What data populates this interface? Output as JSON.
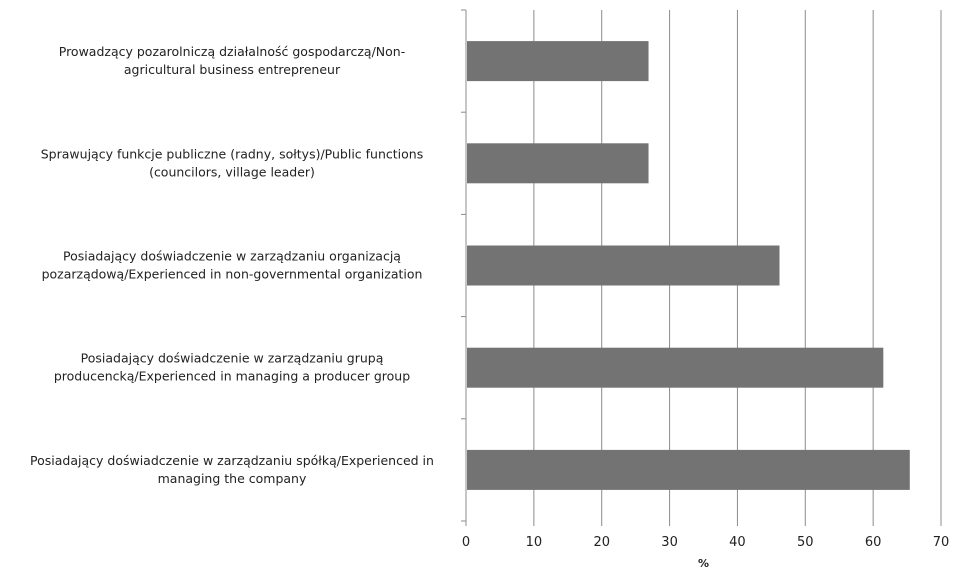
{
  "chart_data": {
    "type": "bar",
    "orientation": "horizontal",
    "categories": [
      [
        "Prowadzący pozarolniczą działalność gospodarczą/Non-",
        "agricultural business entrepreneur"
      ],
      [
        "Sprawujący funkcje publiczne (radny, sołtys)/Public functions",
        "(councilors, village leader)"
      ],
      [
        "Posiadający doświadczenie w zarządzaniu organizacją",
        "pozarządową/Experienced in non-governmental organization"
      ],
      [
        "Posiadający doświadczenie w zarządzaniu grupą",
        "producencką/Experienced in managing a producer group"
      ],
      [
        "Posiadający doświadczenie w zarządzaniu spółką/Experienced in",
        "managing the company"
      ]
    ],
    "values": [
      26.9,
      26.9,
      46.2,
      61.5,
      65.4
    ],
    "xlabel": "%",
    "ylabel": "",
    "title": "",
    "xlim": [
      0,
      70
    ],
    "xticks": [
      0,
      10,
      20,
      30,
      40,
      50,
      60,
      70
    ],
    "grid": "vertical",
    "legend": "none",
    "bar_color": "#737373",
    "grid_color": "#8c8c8c",
    "axis_color": "#8c8c8c"
  }
}
